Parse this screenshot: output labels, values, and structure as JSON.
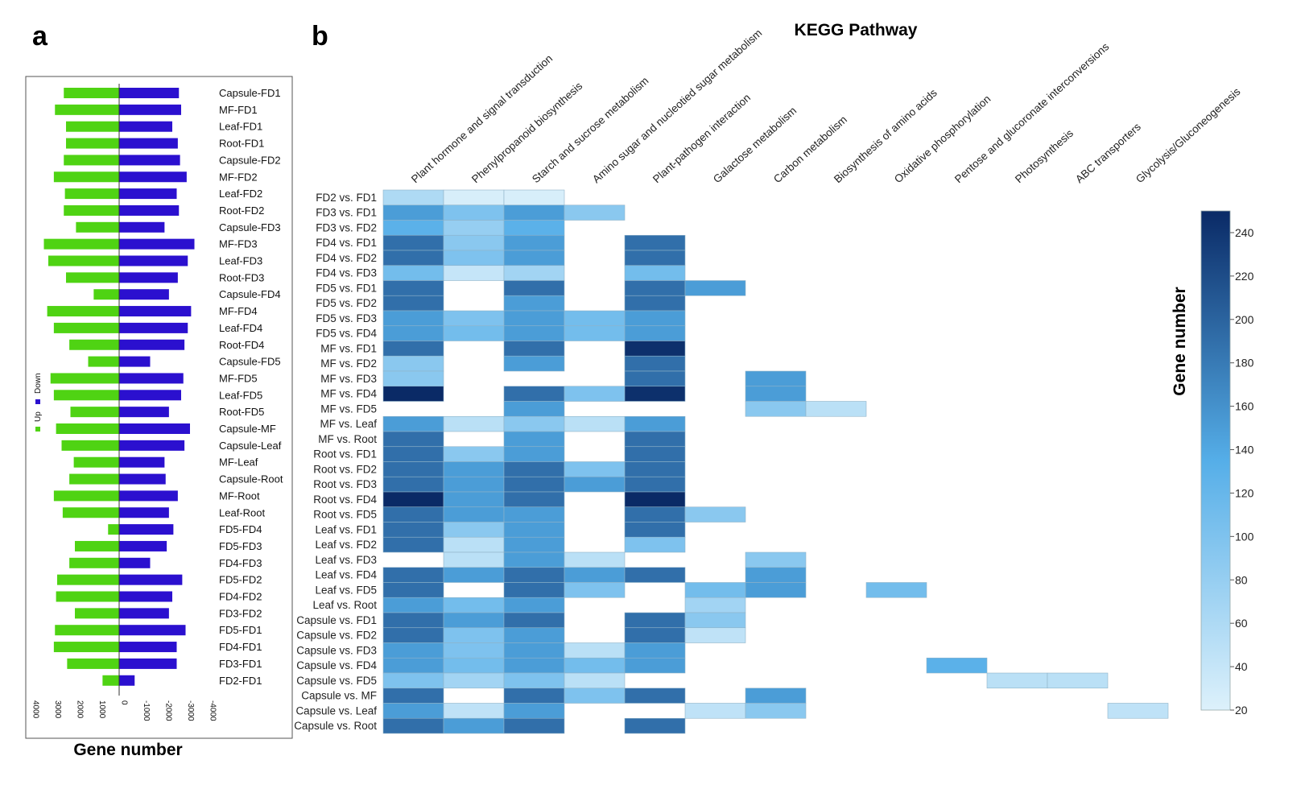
{
  "panel_a_letter": "a",
  "panel_b_letter": "b",
  "legend": {
    "up_label": "Up",
    "down_label": "Down",
    "up_color": "#4fd313",
    "down_color": "#2b10cf"
  },
  "colormap": {
    "low": "#ddf1fb",
    "mid": "#55aee8",
    "high": "#0a2a66"
  },
  "chart_data": [
    {
      "type": "bar",
      "orientation": "horizontal",
      "panel": "a",
      "xlabel": "Gene number",
      "xlim": [
        4000,
        -4000
      ],
      "xticks": [
        "4000",
        "3000",
        "2000",
        "1000",
        "0",
        "-1000",
        "-2000",
        "-3000",
        "-4000"
      ],
      "categories": [
        "Capsule-FD1",
        "MF-FD1",
        "Leaf-FD1",
        "Root-FD1",
        "Capsule-FD2",
        "MF-FD2",
        "Leaf-FD2",
        "Root-FD2",
        "Capsule-FD3",
        "MF-FD3",
        "Leaf-FD3",
        "Root-FD3",
        "Capsule-FD4",
        "MF-FD4",
        "Leaf-FD4",
        "Root-FD4",
        "Capsule-FD5",
        "MF-FD5",
        "Leaf-FD5",
        "Root-FD5",
        "Capsule-MF",
        "Capsule-Leaf",
        "MF-Leaf",
        "Capsule-Root",
        "MF-Root",
        "Leaf-Root",
        "FD5-FD4",
        "FD5-FD3",
        "FD4-FD3",
        "FD5-FD2",
        "FD4-FD2",
        "FD3-FD2",
        "FD5-FD1",
        "FD4-FD1",
        "FD3-FD1",
        "FD2-FD1"
      ],
      "series": [
        {
          "name": "Up",
          "values": [
            2500,
            2900,
            2400,
            2400,
            2500,
            2950,
            2450,
            2500,
            1950,
            3400,
            3200,
            2400,
            1150,
            3250,
            2950,
            2250,
            1400,
            3100,
            2950,
            2200,
            2850,
            2600,
            2050,
            2250,
            2950,
            2550,
            500,
            2000,
            2250,
            2800,
            2850,
            2000,
            2900,
            2950,
            2350,
            750
          ]
        },
        {
          "name": "Down",
          "values": [
            -2700,
            -2800,
            -2400,
            -2650,
            -2750,
            -3050,
            -2600,
            -2700,
            -2050,
            -3400,
            -3100,
            -2650,
            -2250,
            -3250,
            -3100,
            -2950,
            -1400,
            -2900,
            -2800,
            -2250,
            -3200,
            -2950,
            -2050,
            -2100,
            -2650,
            -2250,
            -2450,
            -2150,
            -1400,
            -2850,
            -2400,
            -2250,
            -3000,
            -2600,
            -2600,
            -700
          ]
        }
      ]
    },
    {
      "type": "heatmap",
      "panel": "b",
      "title": "KEGG Pathway",
      "colorbar_label": "Gene number",
      "zlim": [
        20,
        250
      ],
      "colorbar_ticks": [
        240,
        220,
        200,
        180,
        160,
        140,
        120,
        100,
        80,
        60,
        40,
        20
      ],
      "columns": [
        "Plant hormone and signal transduction",
        "Phenylpropanoid biosynthesis",
        "Starch and sucrose metabolism",
        "Amino sugar and nucleotied sugar metabolism",
        "Plant-pathogen interaction",
        "Galactose metabolism",
        "Carbon metabolism",
        "Biosynthesis of amino acids",
        "Oxidative phosphorylation",
        "Pentose and glucoronate interconversions",
        "Photosynthesis",
        "ABC transporters",
        "Glycolysis/Gluconeogenesis"
      ],
      "rows": [
        "FD2 vs. FD1",
        "FD3 vs. FD1",
        "FD3 vs. FD2",
        "FD4 vs. FD1",
        "FD4 vs. FD2",
        "FD4 vs. FD3",
        "FD5 vs. FD1",
        "FD5 vs. FD2",
        "FD5 vs. FD3",
        "FD5 vs. FD4",
        "MF vs. FD1",
        "MF vs. FD2",
        "MF vs. FD3",
        "MF vs. FD4",
        "MF vs. FD5",
        "MF vs. Leaf",
        "MF vs. Root",
        "Root vs. FD1",
        "Root vs. FD2",
        "Root vs. FD3",
        "Root vs. FD4",
        "Root vs. FD5",
        "Leaf vs. FD1",
        "Leaf vs. FD2",
        "Leaf vs. FD3",
        "Leaf vs. FD4",
        "Leaf vs. FD5",
        "Leaf vs. Root",
        "Capsule vs. FD1",
        "Capsule vs. FD2",
        "Capsule vs. FD3",
        "Capsule vs. FD4",
        "Capsule vs. FD5",
        "Capsule vs. MF",
        "Capsule vs. Leaf",
        "Capsule vs. Root"
      ],
      "values": [
        [
          60,
          25,
          25,
          null,
          null,
          null,
          null,
          null,
          null,
          null,
          null,
          null,
          null
        ],
        [
          150,
          100,
          150,
          90,
          null,
          null,
          null,
          null,
          null,
          null,
          null,
          null,
          null
        ],
        [
          130,
          80,
          130,
          null,
          null,
          null,
          null,
          null,
          null,
          null,
          null,
          null,
          null
        ],
        [
          190,
          90,
          150,
          null,
          190,
          null,
          null,
          null,
          null,
          null,
          null,
          null,
          null
        ],
        [
          190,
          100,
          150,
          null,
          190,
          null,
          null,
          null,
          null,
          null,
          null,
          null,
          null
        ],
        [
          110,
          40,
          70,
          null,
          110,
          null,
          null,
          null,
          null,
          null,
          null,
          null,
          null
        ],
        [
          190,
          null,
          190,
          null,
          190,
          150,
          null,
          null,
          null,
          null,
          null,
          null,
          null
        ],
        [
          190,
          null,
          150,
          null,
          190,
          null,
          null,
          null,
          null,
          null,
          null,
          null,
          null
        ],
        [
          150,
          100,
          150,
          110,
          150,
          null,
          null,
          null,
          null,
          null,
          null,
          null,
          null
        ],
        [
          150,
          110,
          150,
          110,
          150,
          null,
          null,
          null,
          null,
          null,
          null,
          null,
          null
        ],
        [
          190,
          null,
          190,
          null,
          245,
          null,
          null,
          null,
          null,
          null,
          null,
          null,
          null
        ],
        [
          90,
          null,
          150,
          null,
          190,
          null,
          null,
          null,
          null,
          null,
          null,
          null,
          null
        ],
        [
          90,
          null,
          null,
          null,
          190,
          null,
          150,
          null,
          null,
          null,
          null,
          null,
          null
        ],
        [
          250,
          null,
          190,
          100,
          245,
          null,
          150,
          null,
          null,
          null,
          null,
          null,
          null
        ],
        [
          null,
          null,
          150,
          null,
          null,
          null,
          90,
          50,
          null,
          null,
          null,
          null,
          null
        ],
        [
          150,
          50,
          90,
          50,
          150,
          null,
          null,
          null,
          null,
          null,
          null,
          null,
          null
        ],
        [
          190,
          null,
          150,
          null,
          190,
          null,
          null,
          null,
          null,
          null,
          null,
          null,
          null
        ],
        [
          190,
          90,
          150,
          null,
          190,
          null,
          null,
          null,
          null,
          null,
          null,
          null,
          null
        ],
        [
          190,
          150,
          190,
          100,
          190,
          null,
          null,
          null,
          null,
          null,
          null,
          null,
          null
        ],
        [
          190,
          150,
          190,
          150,
          190,
          null,
          null,
          null,
          null,
          null,
          null,
          null,
          null
        ],
        [
          250,
          150,
          190,
          null,
          250,
          null,
          null,
          null,
          null,
          null,
          null,
          null,
          null
        ],
        [
          190,
          150,
          150,
          null,
          190,
          90,
          null,
          null,
          null,
          null,
          null,
          null,
          null
        ],
        [
          190,
          90,
          150,
          null,
          190,
          null,
          null,
          null,
          null,
          null,
          null,
          null,
          null
        ],
        [
          190,
          50,
          150,
          null,
          100,
          null,
          null,
          null,
          null,
          null,
          null,
          null,
          null
        ],
        [
          null,
          50,
          150,
          50,
          null,
          null,
          90,
          null,
          null,
          null,
          null,
          null,
          null
        ],
        [
          190,
          150,
          190,
          150,
          190,
          null,
          150,
          null,
          null,
          null,
          null,
          null,
          null
        ],
        [
          190,
          null,
          190,
          100,
          null,
          110,
          150,
          null,
          110,
          null,
          null,
          null,
          null
        ],
        [
          150,
          110,
          150,
          null,
          null,
          70,
          null,
          null,
          null,
          null,
          null,
          null,
          null
        ],
        [
          190,
          150,
          190,
          null,
          190,
          90,
          null,
          null,
          null,
          null,
          null,
          null,
          null
        ],
        [
          190,
          100,
          150,
          null,
          190,
          45,
          null,
          null,
          null,
          null,
          null,
          null,
          null
        ],
        [
          150,
          100,
          150,
          50,
          150,
          null,
          null,
          null,
          null,
          null,
          null,
          null,
          null
        ],
        [
          150,
          110,
          150,
          110,
          150,
          null,
          null,
          null,
          null,
          130,
          null,
          null,
          null
        ],
        [
          100,
          70,
          100,
          50,
          null,
          null,
          null,
          null,
          null,
          null,
          50,
          50,
          null
        ],
        [
          190,
          null,
          190,
          100,
          190,
          null,
          150,
          null,
          null,
          null,
          null,
          null,
          null
        ],
        [
          150,
          45,
          150,
          null,
          null,
          45,
          90,
          null,
          null,
          null,
          null,
          null,
          45
        ],
        [
          190,
          150,
          190,
          null,
          190,
          null,
          null,
          null,
          null,
          null,
          null,
          null,
          null
        ]
      ]
    }
  ]
}
